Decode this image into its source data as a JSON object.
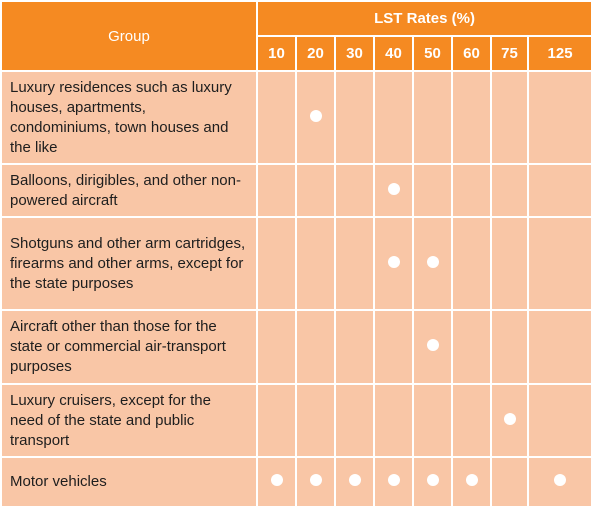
{
  "table": {
    "group_header": "Group",
    "rates_header": "LST Rates (%)",
    "rates": [
      10,
      20,
      30,
      40,
      50,
      60,
      75,
      125
    ],
    "rows": [
      {
        "group": "Luxury residences such as luxury houses, apartments, condominiums, town houses and the like",
        "marks": [
          false,
          true,
          false,
          false,
          false,
          false,
          false,
          false
        ]
      },
      {
        "group": "Balloons, dirigibles, and other non-powered aircraft",
        "marks": [
          false,
          false,
          false,
          true,
          false,
          false,
          false,
          false
        ]
      },
      {
        "group": "Shotguns and other arm cartridges, firearms and other arms, except for the state purposes",
        "marks": [
          false,
          false,
          false,
          true,
          true,
          false,
          false,
          false
        ]
      },
      {
        "group": "Aircraft other than those for the state or commercial air-transport purposes",
        "marks": [
          false,
          false,
          false,
          false,
          true,
          false,
          false,
          false
        ]
      },
      {
        "group": "Luxury cruisers, except for the need of the state and public transport",
        "marks": [
          false,
          false,
          false,
          false,
          false,
          false,
          true,
          false
        ]
      },
      {
        "group": "Motor vehicles",
        "marks": [
          true,
          true,
          true,
          true,
          true,
          true,
          false,
          true
        ]
      }
    ]
  }
}
